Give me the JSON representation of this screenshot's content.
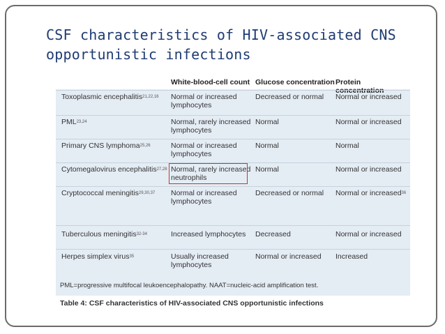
{
  "slide": {
    "title": "CSF characteristics of HIV-associated CNS opportunistic infections"
  },
  "table": {
    "headers": [
      "",
      "White-blood-cell count",
      "Glucose concentration",
      "Protein concentration"
    ],
    "rows": [
      {
        "condition": "Toxoplasmic encephalitis",
        "ref": "21,22,16",
        "wbc": "Normal or increased lymphocytes",
        "glucose": "Decreased or normal",
        "protein": "Normal or increased",
        "protein_ref": ""
      },
      {
        "condition": "PML",
        "ref": "23,24",
        "wbc": "Normal, rarely increased lymphocytes",
        "glucose": "Normal",
        "protein": "Normal or increased",
        "protein_ref": ""
      },
      {
        "condition": "Primary CNS lymphoma",
        "ref": "25,26",
        "wbc": "Normal or increased lymphocytes",
        "glucose": "Normal",
        "protein": "Normal",
        "protein_ref": ""
      },
      {
        "condition": "Cytomegalovirus encephalitis",
        "ref": "27,28",
        "wbc": "Normal, rarely increased neutrophils",
        "glucose": "Normal",
        "protein": "Normal or increased",
        "protein_ref": ""
      },
      {
        "condition": "Cryptococcal meningitis",
        "ref": "29,30,37",
        "wbc": "Normal or increased lymphocytes",
        "glucose": "Decreased or normal",
        "protein": "Normal or increased",
        "protein_ref": "36"
      },
      {
        "condition": "Tuberculous meningitis",
        "ref": "32-34",
        "wbc": "Increased lymphocytes",
        "glucose": "Decreased",
        "protein": "Normal or increased",
        "protein_ref": ""
      },
      {
        "condition": "Herpes simplex virus",
        "ref": "35",
        "wbc": "Usually increased lymphocytes",
        "glucose": "Normal or increased",
        "protein": "Increased",
        "protein_ref": ""
      }
    ],
    "footnote": "PML=progressive multifocal leukoencephalopathy. NAAT=nucleic-acid amplification test.",
    "caption": "Table 4: CSF characteristics of HIV-associated CNS opportunistic infections"
  }
}
